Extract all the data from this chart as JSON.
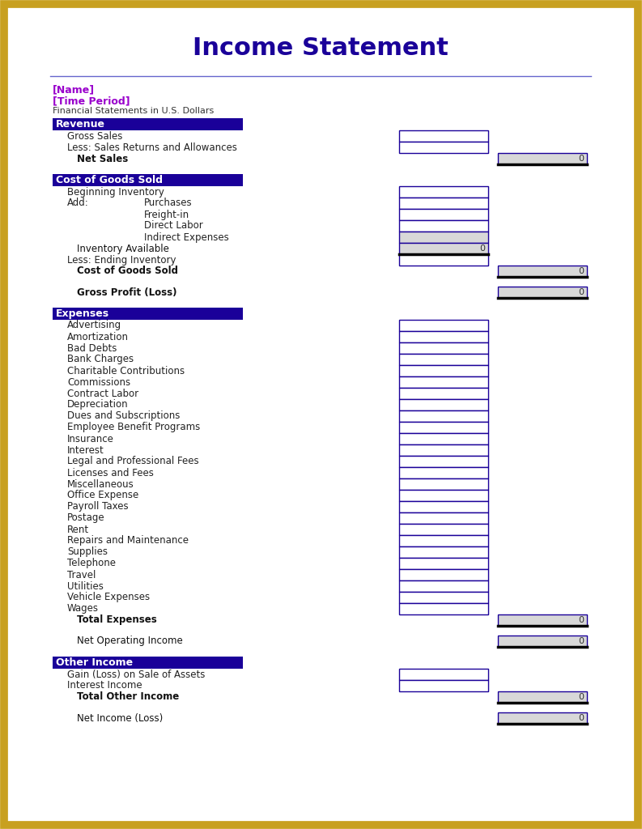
{
  "title": "Income Statement",
  "title_color": "#1a0099",
  "border_color": "#c8a020",
  "name_label": "[Name]",
  "time_label": "[Time Period]",
  "subtitle": "Financial Statements in U.S. Dollars",
  "name_color": "#9900cc",
  "subtitle_color": "#333333",
  "header_bg": "#1a0099",
  "header_text_color": "#ffffff",
  "input_box_color": "#ffffff",
  "input_box_border": "#1a0099",
  "total_box_color": "#d8d8d8",
  "line_color": "#6666cc",
  "sections": [
    {
      "type": "header",
      "label": "Revenue"
    },
    {
      "type": "input_row",
      "label": "Gross Sales",
      "indent": 1
    },
    {
      "type": "input_row",
      "label": "Less: Sales Returns and Allowances",
      "indent": 1
    },
    {
      "type": "total_row",
      "label": "Net Sales",
      "bold": true,
      "col": 2
    },
    {
      "type": "spacer"
    },
    {
      "type": "header",
      "label": "Cost of Goods Sold"
    },
    {
      "type": "input_row",
      "label": "Beginning Inventory",
      "indent": 1
    },
    {
      "type": "input_row_label2",
      "label": "Add:",
      "label2": "Purchases",
      "indent": 1
    },
    {
      "type": "input_row_indent2",
      "label": "Freight-in"
    },
    {
      "type": "input_row_indent2",
      "label": "Direct Labor"
    },
    {
      "type": "input_row_indent2",
      "label": "Indirect Expenses",
      "shaded": true
    },
    {
      "type": "total_row",
      "label": "Inventory Available",
      "bold": false,
      "col": 1,
      "thick_bottom": true
    },
    {
      "type": "input_row",
      "label": "Less: Ending Inventory",
      "indent": 1
    },
    {
      "type": "total_row",
      "label": "Cost of Goods Sold",
      "bold": true,
      "col": 2
    },
    {
      "type": "spacer"
    },
    {
      "type": "total_row",
      "label": "Gross Profit (Loss)",
      "bold": true,
      "col": 2
    },
    {
      "type": "spacer"
    },
    {
      "type": "header",
      "label": "Expenses"
    },
    {
      "type": "input_row",
      "label": "Advertising",
      "indent": 1
    },
    {
      "type": "input_row",
      "label": "Amortization",
      "indent": 1
    },
    {
      "type": "input_row",
      "label": "Bad Debts",
      "indent": 1
    },
    {
      "type": "input_row",
      "label": "Bank Charges",
      "indent": 1
    },
    {
      "type": "input_row",
      "label": "Charitable Contributions",
      "indent": 1
    },
    {
      "type": "input_row",
      "label": "Commissions",
      "indent": 1
    },
    {
      "type": "input_row",
      "label": "Contract Labor",
      "indent": 1
    },
    {
      "type": "input_row",
      "label": "Depreciation",
      "indent": 1
    },
    {
      "type": "input_row",
      "label": "Dues and Subscriptions",
      "indent": 1
    },
    {
      "type": "input_row",
      "label": "Employee Benefit Programs",
      "indent": 1
    },
    {
      "type": "input_row",
      "label": "Insurance",
      "indent": 1
    },
    {
      "type": "input_row",
      "label": "Interest",
      "indent": 1
    },
    {
      "type": "input_row",
      "label": "Legal and Professional Fees",
      "indent": 1
    },
    {
      "type": "input_row",
      "label": "Licenses and Fees",
      "indent": 1
    },
    {
      "type": "input_row",
      "label": "Miscellaneous",
      "indent": 1
    },
    {
      "type": "input_row",
      "label": "Office Expense",
      "indent": 1
    },
    {
      "type": "input_row",
      "label": "Payroll Taxes",
      "indent": 1
    },
    {
      "type": "input_row",
      "label": "Postage",
      "indent": 1
    },
    {
      "type": "input_row",
      "label": "Rent",
      "indent": 1
    },
    {
      "type": "input_row",
      "label": "Repairs and Maintenance",
      "indent": 1
    },
    {
      "type": "input_row",
      "label": "Supplies",
      "indent": 1
    },
    {
      "type": "input_row",
      "label": "Telephone",
      "indent": 1
    },
    {
      "type": "input_row",
      "label": "Travel",
      "indent": 1
    },
    {
      "type": "input_row",
      "label": "Utilities",
      "indent": 1
    },
    {
      "type": "input_row",
      "label": "Vehicle Expenses",
      "indent": 1
    },
    {
      "type": "input_row",
      "label": "Wages",
      "indent": 1
    },
    {
      "type": "total_row",
      "label": "Total Expenses",
      "bold": true,
      "col": 2
    },
    {
      "type": "spacer"
    },
    {
      "type": "total_row",
      "label": "Net Operating Income",
      "bold": false,
      "col": 2
    },
    {
      "type": "spacer"
    },
    {
      "type": "header",
      "label": "Other Income"
    },
    {
      "type": "input_row",
      "label": "Gain (Loss) on Sale of Assets",
      "indent": 1
    },
    {
      "type": "input_row",
      "label": "Interest Income",
      "indent": 1
    },
    {
      "type": "total_row",
      "label": "Total Other Income",
      "bold": true,
      "col": 2
    },
    {
      "type": "spacer"
    },
    {
      "type": "total_row",
      "label": "Net Income (Loss)",
      "bold": false,
      "col": 2
    }
  ]
}
